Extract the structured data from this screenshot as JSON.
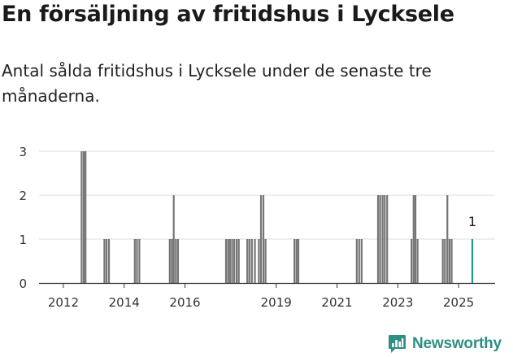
{
  "header": {
    "title": "En försäljning av fritidshus i Lycksele",
    "subtitle": "Antal sålda fritidshus i Lycksele under de senaste tre månaderna."
  },
  "brand": {
    "name": "Newsworthy"
  },
  "colors": {
    "bar": "#757575",
    "highlight": "#1a9e8a",
    "grid": "#dddddd",
    "axis": "#333333",
    "brand": "#2f8f84"
  },
  "chart_data": {
    "type": "bar",
    "x_axis_type": "time",
    "xlim": [
      2011.2,
      2026.2
    ],
    "ylim": [
      0,
      3
    ],
    "y_ticks": [
      0,
      1,
      2,
      3
    ],
    "x_ticks": [
      "2012",
      "2014",
      "2016",
      "2019",
      "2021",
      "2023",
      "2025"
    ],
    "x_tick_positions": [
      2012.0,
      2014.0,
      2016.0,
      2019.0,
      2021.0,
      2023.0,
      2025.0
    ],
    "grid": true,
    "series": [
      {
        "x": [
          2012.6,
          2012.67,
          2012.73,
          2013.35,
          2013.42,
          2013.5,
          2014.35,
          2014.42,
          2014.5,
          2015.5,
          2015.57,
          2015.63,
          2015.7,
          2015.77,
          2017.35,
          2017.42,
          2017.48,
          2017.55,
          2017.62,
          2017.7,
          2017.77,
          2018.05,
          2018.12,
          2018.2,
          2018.3,
          2018.43,
          2018.5,
          2018.58,
          2018.65,
          2019.6,
          2019.67,
          2019.73,
          2021.65,
          2021.73,
          2021.81,
          2022.35,
          2022.42,
          2022.5,
          2022.57,
          2022.65,
          2023.45,
          2023.52,
          2023.58,
          2023.65,
          2024.48,
          2024.55,
          2024.63,
          2024.7,
          2024.77
        ],
        "values": [
          3,
          3,
          3,
          1,
          1,
          1,
          1,
          1,
          1,
          1,
          1,
          2,
          1,
          1,
          1,
          1,
          1,
          1,
          1,
          1,
          1,
          1,
          1,
          1,
          1,
          1,
          2,
          2,
          1,
          1,
          1,
          1,
          1,
          1,
          1,
          2,
          2,
          2,
          2,
          2,
          1,
          2,
          2,
          1,
          1,
          1,
          2,
          1,
          1
        ]
      },
      {
        "x": [
          2025.45
        ],
        "values": [
          1
        ],
        "label": "1"
      }
    ]
  }
}
